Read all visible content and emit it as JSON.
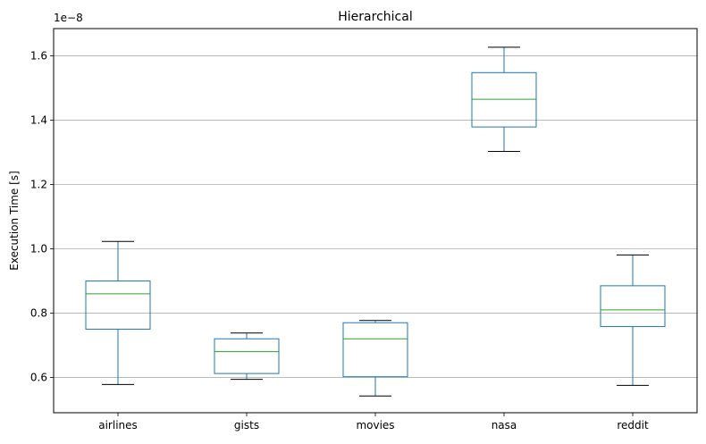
{
  "chart_data": {
    "type": "box",
    "title": "Hierarchical",
    "xlabel": "",
    "ylabel": "Execution Time [s]",
    "y_offset_label": "1e−8",
    "y_scale": 1e-08,
    "ylim": [
      0.49,
      1.685
    ],
    "yticks": [
      0.6,
      0.8,
      1.0,
      1.2,
      1.4,
      1.6
    ],
    "ytick_labels": [
      "0.6",
      "0.8",
      "1.0",
      "1.2",
      "1.4",
      "1.6"
    ],
    "grid": "y-major",
    "categories": [
      "airlines",
      "gists",
      "movies",
      "nasa",
      "reddit"
    ],
    "boxes": [
      {
        "label": "airlines",
        "whislo": 0.578,
        "q1": 0.75,
        "med": 0.86,
        "q3": 0.9,
        "whishi": 1.023
      },
      {
        "label": "gists",
        "whislo": 0.594,
        "q1": 0.612,
        "med": 0.68,
        "q3": 0.72,
        "whishi": 0.738
      },
      {
        "label": "movies",
        "whislo": 0.542,
        "q1": 0.602,
        "med": 0.72,
        "q3": 0.77,
        "whishi": 0.777
      },
      {
        "label": "nasa",
        "whislo": 1.303,
        "q1": 1.379,
        "med": 1.465,
        "q3": 1.548,
        "whishi": 1.627
      },
      {
        "label": "reddit",
        "whislo": 0.575,
        "q1": 0.758,
        "med": 0.81,
        "q3": 0.885,
        "whishi": 0.981
      }
    ],
    "colors": {
      "box": "#1f77b4",
      "median": "#2ca02c",
      "whisker_cap": "#000000",
      "grid": "#b0b0b0"
    }
  }
}
